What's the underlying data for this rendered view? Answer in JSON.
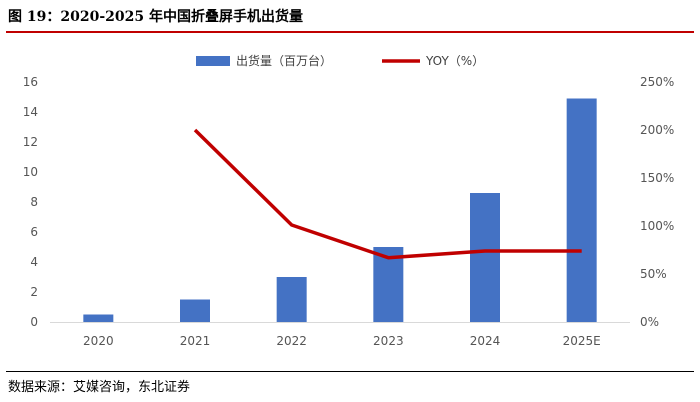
{
  "figure": {
    "title": "图 19：2020-2025 年中国折叠屏手机出货量",
    "source": "数据来源：艾媒咨询，东北证券"
  },
  "chart_data": {
    "type": "bar",
    "categories": [
      "2020",
      "2021",
      "2022",
      "2023",
      "2024",
      "2025E"
    ],
    "series": [
      {
        "name": "出货量（百万台）",
        "type": "bar",
        "axis": "left",
        "color": "#4472c4",
        "values": [
          0.5,
          1.5,
          3.0,
          5.0,
          8.6,
          14.9
        ]
      },
      {
        "name": "YOY（%）",
        "type": "line",
        "axis": "right",
        "color": "#c00000",
        "values": [
          null,
          200,
          101,
          67,
          74,
          74
        ]
      }
    ],
    "y_left": {
      "ylim": [
        0,
        16
      ],
      "ticks": [
        "0",
        "2",
        "4",
        "6",
        "8",
        "10",
        "12",
        "14",
        "16"
      ]
    },
    "y_right": {
      "ylim": [
        0,
        250
      ],
      "ticks": [
        "0%",
        "50%",
        "100%",
        "150%",
        "200%",
        "250%"
      ]
    },
    "grid": false,
    "legend": "top-center"
  }
}
